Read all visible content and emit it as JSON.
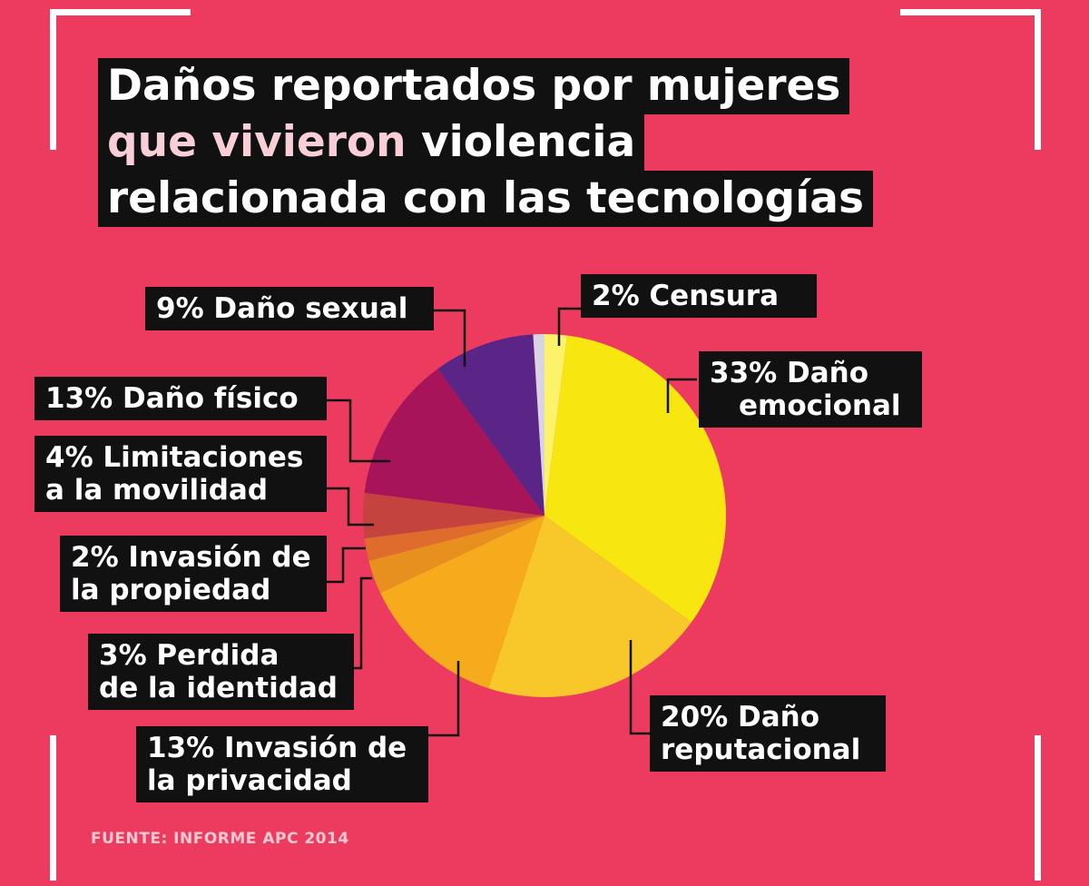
{
  "title": {
    "line1": "Daños reportados por mujeres",
    "line2_highlight": "que vivieron",
    "line2_rest": " violencia",
    "line3": "relacionada con las tecnologías"
  },
  "source": "FUENTE: INFORME APC 2014",
  "colors": {
    "background": "#ec3b5e",
    "label_bg": "#111111",
    "title_highlight": "#f8cfd7"
  },
  "chart_data": {
    "type": "pie",
    "slices": [
      {
        "label_lines": [
          "2% Censura"
        ],
        "value": 2,
        "color": "#fdf36b"
      },
      {
        "label_lines": [
          "33% Daño",
          "emocional"
        ],
        "value": 33,
        "color": "#f7e60f"
      },
      {
        "label_lines": [
          "20% Daño",
          "reputacional"
        ],
        "value": 20,
        "color": "#f8c72a"
      },
      {
        "label_lines": [
          "13% Invasión de",
          "la privacidad"
        ],
        "value": 13,
        "color": "#f5ab1c"
      },
      {
        "label_lines": [
          "3% Perdida",
          "de la identidad"
        ],
        "value": 3,
        "color": "#e8901f"
      },
      {
        "label_lines": [
          "2% Invasión de",
          "la propiedad"
        ],
        "value": 2,
        "color": "#df6b2d"
      },
      {
        "label_lines": [
          "4% Limitaciones",
          "a la movilidad"
        ],
        "value": 4,
        "color": "#c5433f"
      },
      {
        "label_lines": [
          "13% Daño físico"
        ],
        "value": 13,
        "color": "#a8145a"
      },
      {
        "label_lines": [
          "9% Daño sexual"
        ],
        "value": 9,
        "color": "#5b2487"
      },
      {
        "label_lines": [
          ""
        ],
        "value": 1,
        "color": "#d9d3e4"
      }
    ]
  }
}
